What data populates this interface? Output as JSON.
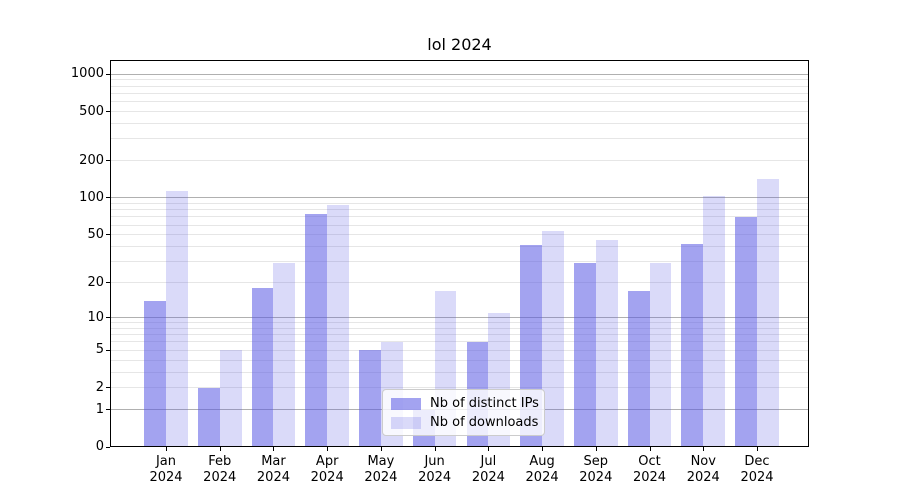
{
  "title": "lol 2024",
  "chart_data": {
    "type": "bar",
    "title": "lol 2024",
    "categories": [
      "Jan 2024",
      "Feb 2024",
      "Mar 2024",
      "Apr 2024",
      "May 2024",
      "Jun 2024",
      "Jul 2024",
      "Aug 2024",
      "Sep 2024",
      "Oct 2024",
      "Nov 2024",
      "Dec 2024"
    ],
    "series": [
      {
        "name": "Nb of distinct IPs",
        "values": [
          14,
          2,
          18,
          74,
          5,
          1,
          6,
          41,
          29,
          17,
          42,
          70
        ]
      },
      {
        "name": "Nb of downloads",
        "values": [
          113,
          5,
          29,
          87,
          6,
          17,
          11,
          54,
          45,
          29,
          104,
          142
        ]
      }
    ],
    "xlabel": "",
    "ylabel": "",
    "yticks": [
      0,
      1,
      2,
      5,
      10,
      20,
      50,
      100,
      200,
      500,
      1000
    ],
    "yscale": "log1p",
    "ylim": [
      0,
      1300
    ],
    "grid": "horizontal major+minor",
    "legend_position": "inside lower-center",
    "colors": {
      "bar_base": "#5858e3",
      "ips_alpha": 0.55,
      "downloads_alpha": 0.22,
      "ips_effective": "#a5a5ef",
      "downloads_effective": "#dadaf8",
      "grid_major": "#b0b0b0",
      "grid_minor": "#e6e6e6",
      "axis": "#000000",
      "legend_border": "#cccccc",
      "legend_background": "#ffffff",
      "legend_alpha": 0.8
    }
  }
}
